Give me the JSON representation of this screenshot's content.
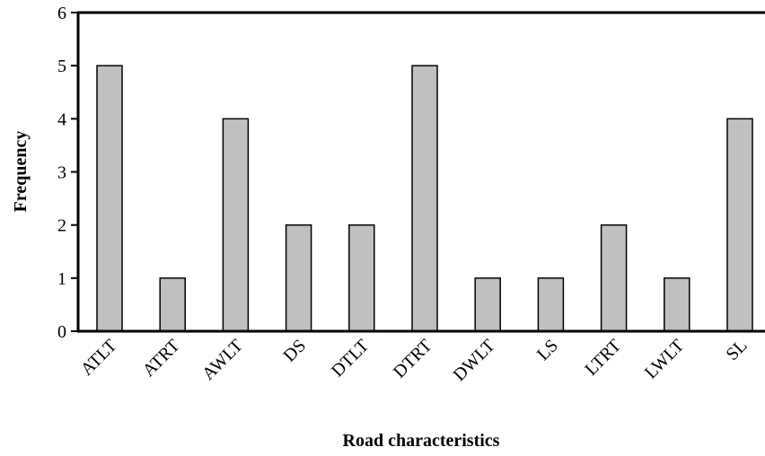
{
  "chart_data": {
    "type": "bar",
    "title": "",
    "xlabel": "Road characteristics",
    "ylabel": "Frequency",
    "categories": [
      "ATLT",
      "ATRT",
      "AWLT",
      "DS",
      "DTLT",
      "DTRT",
      "DWLT",
      "LS",
      "LTRT",
      "LWLT",
      "SL"
    ],
    "values": [
      5,
      1,
      4,
      2,
      2,
      5,
      1,
      1,
      2,
      1,
      4
    ],
    "ylim": [
      0,
      6
    ],
    "yticks": [
      "0",
      "1",
      "2",
      "3",
      "4",
      "5",
      "6"
    ],
    "grid": false,
    "legend": "none",
    "bar_color": "#c0c0c0",
    "bar_edge_color": "#000000"
  }
}
